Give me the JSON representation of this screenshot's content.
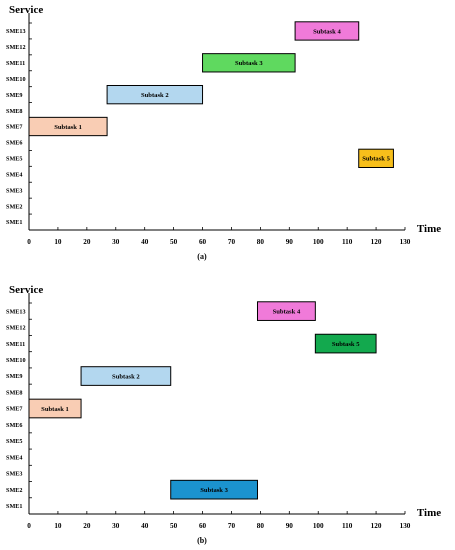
{
  "chart_data": [
    {
      "type": "gantt",
      "caption": "(a)",
      "ylabel": "Service",
      "xlabel": "Time",
      "xlim": [
        0,
        130
      ],
      "xticks": [
        0,
        10,
        20,
        30,
        40,
        50,
        60,
        70,
        80,
        90,
        100,
        110,
        120,
        130
      ],
      "categories": [
        "SME1",
        "SME2",
        "SME3",
        "SME4",
        "SME5",
        "SME6",
        "SME7",
        "SME8",
        "SME9",
        "SME10",
        "SME11",
        "SME12",
        "SME13"
      ],
      "tasks": [
        {
          "label": "Subtask 1",
          "service": "SME7",
          "start": 0,
          "end": 27,
          "color": "#f9cdb4"
        },
        {
          "label": "Subtask 2",
          "service": "SME9",
          "start": 27,
          "end": 60,
          "color": "#b3d7ef"
        },
        {
          "label": "Subtask 3",
          "service": "SME11",
          "start": 60,
          "end": 92,
          "color": "#5fd95f"
        },
        {
          "label": "Subtask 4",
          "service": "SME13",
          "start": 92,
          "end": 114,
          "color": "#f07ad9"
        },
        {
          "label": "Subtask 5",
          "service": "SME5",
          "start": 114,
          "end": 126,
          "color": "#f7bf1b"
        }
      ]
    },
    {
      "type": "gantt",
      "caption": "(b)",
      "ylabel": "Service",
      "xlabel": "Time",
      "xlim": [
        0,
        130
      ],
      "xticks": [
        0,
        10,
        20,
        30,
        40,
        50,
        60,
        70,
        80,
        90,
        100,
        110,
        120,
        130
      ],
      "categories": [
        "SME1",
        "SME2",
        "SME3",
        "SME4",
        "SME5",
        "SME6",
        "SME7",
        "SME8",
        "SME9",
        "SME10",
        "SME11",
        "SME12",
        "SME13"
      ],
      "tasks": [
        {
          "label": "Subtask 1",
          "service": "SME7",
          "start": 0,
          "end": 18,
          "color": "#f9cdb4"
        },
        {
          "label": "Subtask 2",
          "service": "SME9",
          "start": 18,
          "end": 49,
          "color": "#b3d7ef"
        },
        {
          "label": "Subtask 3",
          "service": "SME2",
          "start": 49,
          "end": 79,
          "color": "#1b93cf"
        },
        {
          "label": "Subtask 4",
          "service": "SME13",
          "start": 79,
          "end": 99,
          "color": "#f07ad9"
        },
        {
          "label": "Subtask 5",
          "service": "SME11",
          "start": 99,
          "end": 120,
          "color": "#13a94e"
        }
      ]
    }
  ]
}
